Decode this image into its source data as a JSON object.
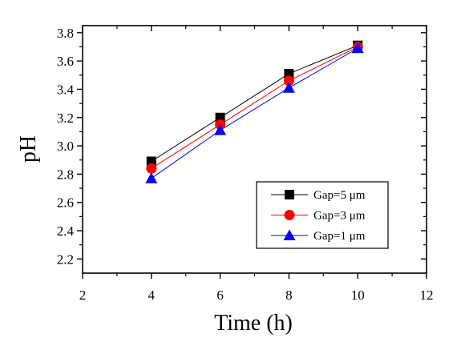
{
  "chart_data": {
    "type": "line",
    "xlabel": "Time (h)",
    "ylabel": "pH",
    "xlim": [
      2,
      12
    ],
    "ylim": [
      2.1,
      3.85
    ],
    "x_ticks": [
      2,
      4,
      6,
      8,
      10,
      12
    ],
    "y_ticks": [
      2.2,
      2.4,
      2.6,
      2.8,
      3.0,
      3.2,
      3.4,
      3.6,
      3.8
    ],
    "x_tick_labels": [
      "2",
      "4",
      "6",
      "8",
      "10",
      "12"
    ],
    "y_tick_labels": [
      "2.2",
      "2.4",
      "2.6",
      "2.8",
      "3.0",
      "3.2",
      "3.4",
      "3.6",
      "3.8"
    ],
    "x": [
      4,
      6,
      8,
      10
    ],
    "series": [
      {
        "name": "Gap=5 μm",
        "values": [
          2.89,
          3.2,
          3.51,
          3.71
        ],
        "color": "#000000",
        "marker": "square"
      },
      {
        "name": "Gap=3 μm",
        "values": [
          2.84,
          3.15,
          3.46,
          3.7
        ],
        "color": "#ff0000",
        "marker": "circle"
      },
      {
        "name": "Gap=1 μm",
        "values": [
          2.77,
          3.11,
          3.41,
          3.69
        ],
        "color": "#0000ff",
        "marker": "triangle"
      }
    ],
    "legend_position": "bottom-right",
    "grid": false
  }
}
